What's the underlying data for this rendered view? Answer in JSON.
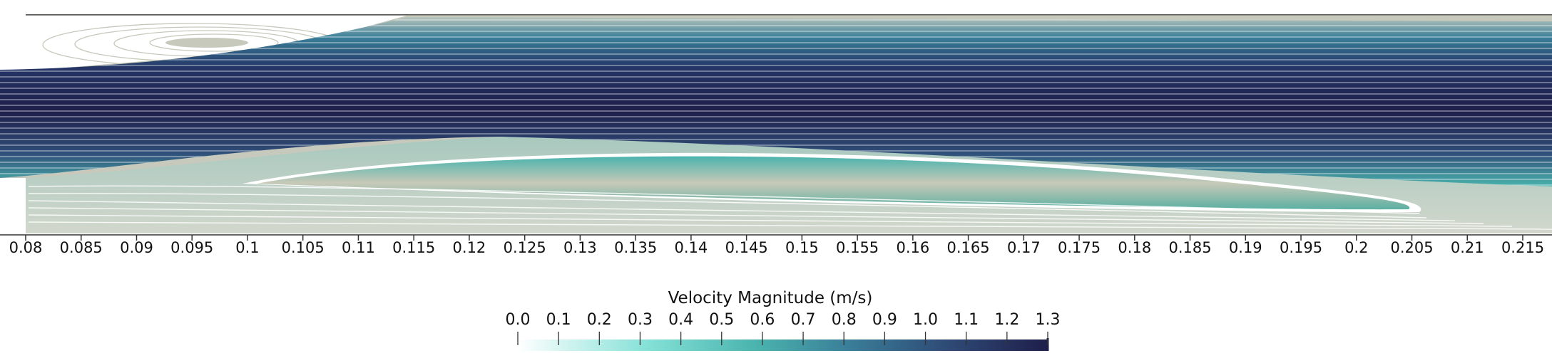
{
  "chart_data": {
    "type": "streamline-contour",
    "xaxis": {
      "ticks": [
        0.08,
        0.085,
        0.09,
        0.095,
        0.1,
        0.105,
        0.11,
        0.115,
        0.12,
        0.125,
        0.13,
        0.135,
        0.14,
        0.145,
        0.15,
        0.155,
        0.16,
        0.165,
        0.17,
        0.175,
        0.18,
        0.185,
        0.19,
        0.195,
        0.2,
        0.205,
        0.21,
        0.215
      ],
      "tick_labels": [
        "0.08",
        "0.085",
        "0.09",
        "0.095",
        "0.1",
        "0.105",
        "0.11",
        "0.115",
        "0.12",
        "0.125",
        "0.13",
        "0.135",
        "0.14",
        "0.145",
        "0.15",
        "0.155",
        "0.16",
        "0.165",
        "0.17",
        "0.175",
        "0.18",
        "0.185",
        "0.19",
        "0.195",
        "0.2",
        "0.205",
        "0.21",
        "0.215"
      ],
      "range": [
        0.078,
        0.2175
      ]
    },
    "colorbar": {
      "title": "Velocity Magnitude (m/s)",
      "range": [
        0.0,
        1.3
      ],
      "tick_labels": [
        "0.0",
        "0.1",
        "0.2",
        "0.3",
        "0.4",
        "0.5",
        "0.6",
        "0.7",
        "0.8",
        "0.9",
        "1.0",
        "1.1",
        "1.2",
        "1.3"
      ],
      "color_stops": [
        "#ffffff",
        "#82e0d6",
        "#4ab3ad",
        "#3a7f99",
        "#2f4d78",
        "#1e1e4a"
      ]
    },
    "regions": {
      "inlet_x_end": 0.08,
      "upper_recirculation_x_end": 0.115,
      "lower_recirculation_x_end": 0.2085,
      "core_velocity_max": 1.3
    }
  }
}
